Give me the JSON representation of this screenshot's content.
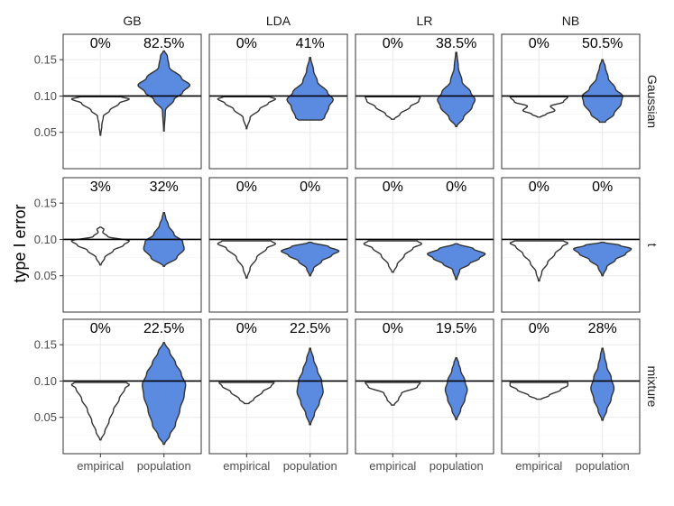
{
  "chart_data": {
    "type": "violin",
    "ylabel": "type I error",
    "x_categories": [
      "empirical",
      "population"
    ],
    "y_ticks": [
      0.05,
      0.1,
      0.15
    ],
    "y_tick_labels": [
      "0.05",
      "0.10",
      "0.15"
    ],
    "ylim": [
      0.0,
      0.185
    ],
    "reference_line": 0.1,
    "column_facets": [
      "GB",
      "LDA",
      "LR",
      "NB"
    ],
    "row_facets": [
      "Gaussian",
      "t",
      "mixture"
    ],
    "colors": {
      "empirical": "#ffffff",
      "population": "#5b8be0",
      "outline": "#333333"
    },
    "panels": [
      {
        "row": "Gaussian",
        "col": "GB",
        "empirical": {
          "percent": "0%",
          "min": 0.046,
          "max": 0.099,
          "profile": [
            [
              0.046,
              0.01
            ],
            [
              0.06,
              0.05
            ],
            [
              0.072,
              0.1
            ],
            [
              0.08,
              0.32
            ],
            [
              0.09,
              0.65
            ],
            [
              0.096,
              1.0
            ],
            [
              0.099,
              0.7
            ]
          ]
        },
        "population": {
          "percent": "82.5%",
          "min": 0.052,
          "max": 0.162,
          "profile": [
            [
              0.052,
              0.01
            ],
            [
              0.08,
              0.05
            ],
            [
              0.095,
              0.35
            ],
            [
              0.105,
              0.65
            ],
            [
              0.115,
              0.9
            ],
            [
              0.125,
              0.6
            ],
            [
              0.14,
              0.18
            ],
            [
              0.155,
              0.12
            ],
            [
              0.162,
              0.02
            ]
          ]
        }
      },
      {
        "row": "Gaussian",
        "col": "LDA",
        "empirical": {
          "percent": "0%",
          "min": 0.055,
          "max": 0.099,
          "profile": [
            [
              0.055,
              0.01
            ],
            [
              0.07,
              0.12
            ],
            [
              0.082,
              0.45
            ],
            [
              0.09,
              0.75
            ],
            [
              0.096,
              1.0
            ],
            [
              0.099,
              0.8
            ]
          ]
        },
        "population": {
          "percent": "41%",
          "min": 0.067,
          "max": 0.153,
          "profile": [
            [
              0.067,
              0.4
            ],
            [
              0.07,
              0.5
            ],
            [
              0.085,
              0.65
            ],
            [
              0.095,
              0.8
            ],
            [
              0.105,
              0.6
            ],
            [
              0.12,
              0.25
            ],
            [
              0.135,
              0.12
            ],
            [
              0.153,
              0.02
            ]
          ]
        }
      },
      {
        "row": "Gaussian",
        "col": "LR",
        "empirical": {
          "percent": "0%",
          "min": 0.068,
          "max": 0.099,
          "profile": [
            [
              0.068,
              0.05
            ],
            [
              0.075,
              0.25
            ],
            [
              0.085,
              0.6
            ],
            [
              0.093,
              0.9
            ],
            [
              0.099,
              0.95
            ]
          ]
        },
        "population": {
          "percent": "38.5%",
          "min": 0.058,
          "max": 0.16,
          "profile": [
            [
              0.058,
              0.02
            ],
            [
              0.07,
              0.25
            ],
            [
              0.085,
              0.55
            ],
            [
              0.095,
              0.65
            ],
            [
              0.105,
              0.5
            ],
            [
              0.12,
              0.2
            ],
            [
              0.14,
              0.07
            ],
            [
              0.16,
              0.02
            ]
          ]
        }
      },
      {
        "row": "Gaussian",
        "col": "NB",
        "empirical": {
          "percent": "0%",
          "min": 0.071,
          "max": 0.099,
          "profile": [
            [
              0.071,
              0.05
            ],
            [
              0.075,
              0.25
            ],
            [
              0.08,
              0.55
            ],
            [
              0.086,
              0.4
            ],
            [
              0.092,
              0.85
            ],
            [
              0.099,
              1.0
            ]
          ]
        },
        "population": {
          "percent": "50.5%",
          "min": 0.064,
          "max": 0.15,
          "profile": [
            [
              0.064,
              0.1
            ],
            [
              0.075,
              0.4
            ],
            [
              0.09,
              0.65
            ],
            [
              0.1,
              0.7
            ],
            [
              0.11,
              0.45
            ],
            [
              0.125,
              0.2
            ],
            [
              0.14,
              0.1
            ],
            [
              0.15,
              0.02
            ]
          ]
        }
      },
      {
        "row": "t",
        "col": "GB",
        "empirical": {
          "percent": "3%",
          "min": 0.065,
          "max": 0.117,
          "profile": [
            [
              0.065,
              0.02
            ],
            [
              0.075,
              0.15
            ],
            [
              0.085,
              0.45
            ],
            [
              0.092,
              0.8
            ],
            [
              0.098,
              1.0
            ],
            [
              0.104,
              0.25
            ],
            [
              0.11,
              0.08
            ],
            [
              0.114,
              0.12
            ],
            [
              0.117,
              0.02
            ]
          ]
        },
        "population": {
          "percent": "32%",
          "min": 0.063,
          "max": 0.137,
          "profile": [
            [
              0.063,
              0.02
            ],
            [
              0.075,
              0.45
            ],
            [
              0.087,
              0.7
            ],
            [
              0.097,
              0.65
            ],
            [
              0.107,
              0.35
            ],
            [
              0.12,
              0.15
            ],
            [
              0.13,
              0.06
            ],
            [
              0.137,
              0.02
            ]
          ]
        }
      },
      {
        "row": "t",
        "col": "LDA",
        "empirical": {
          "percent": "0%",
          "min": 0.047,
          "max": 0.098,
          "profile": [
            [
              0.047,
              0.02
            ],
            [
              0.06,
              0.12
            ],
            [
              0.075,
              0.35
            ],
            [
              0.088,
              0.7
            ],
            [
              0.094,
              1.0
            ],
            [
              0.098,
              0.85
            ]
          ]
        },
        "population": {
          "percent": "0%",
          "min": 0.05,
          "max": 0.096,
          "profile": [
            [
              0.05,
              0.02
            ],
            [
              0.06,
              0.12
            ],
            [
              0.07,
              0.4
            ],
            [
              0.078,
              0.75
            ],
            [
              0.084,
              1.0
            ],
            [
              0.09,
              0.65
            ],
            [
              0.096,
              0.05
            ]
          ]
        }
      },
      {
        "row": "t",
        "col": "LR",
        "empirical": {
          "percent": "0%",
          "min": 0.055,
          "max": 0.098,
          "profile": [
            [
              0.055,
              0.03
            ],
            [
              0.065,
              0.15
            ],
            [
              0.078,
              0.4
            ],
            [
              0.088,
              0.7
            ],
            [
              0.094,
              1.0
            ],
            [
              0.098,
              0.85
            ]
          ]
        },
        "population": {
          "percent": "0%",
          "min": 0.045,
          "max": 0.094,
          "profile": [
            [
              0.045,
              0.02
            ],
            [
              0.058,
              0.12
            ],
            [
              0.066,
              0.45
            ],
            [
              0.074,
              0.8
            ],
            [
              0.08,
              1.0
            ],
            [
              0.087,
              0.6
            ],
            [
              0.094,
              0.05
            ]
          ]
        }
      },
      {
        "row": "t",
        "col": "NB",
        "empirical": {
          "percent": "0%",
          "min": 0.043,
          "max": 0.098,
          "profile": [
            [
              0.043,
              0.02
            ],
            [
              0.055,
              0.1
            ],
            [
              0.068,
              0.3
            ],
            [
              0.08,
              0.55
            ],
            [
              0.09,
              0.8
            ],
            [
              0.095,
              1.0
            ],
            [
              0.098,
              0.85
            ]
          ]
        },
        "population": {
          "percent": "0%",
          "min": 0.05,
          "max": 0.096,
          "profile": [
            [
              0.05,
              0.02
            ],
            [
              0.062,
              0.15
            ],
            [
              0.072,
              0.45
            ],
            [
              0.08,
              0.8
            ],
            [
              0.087,
              1.0
            ],
            [
              0.092,
              0.6
            ],
            [
              0.096,
              0.05
            ]
          ]
        }
      },
      {
        "row": "mixture",
        "col": "GB",
        "empirical": {
          "percent": "0%",
          "min": 0.019,
          "max": 0.098,
          "profile": [
            [
              0.019,
              0.02
            ],
            [
              0.03,
              0.15
            ],
            [
              0.045,
              0.3
            ],
            [
              0.06,
              0.45
            ],
            [
              0.075,
              0.65
            ],
            [
              0.09,
              0.85
            ],
            [
              0.095,
              1.0
            ],
            [
              0.098,
              0.9
            ]
          ]
        },
        "population": {
          "percent": "22.5%",
          "min": 0.013,
          "max": 0.153,
          "profile": [
            [
              0.013,
              0.02
            ],
            [
              0.025,
              0.2
            ],
            [
              0.04,
              0.4
            ],
            [
              0.06,
              0.55
            ],
            [
              0.08,
              0.7
            ],
            [
              0.095,
              0.75
            ],
            [
              0.11,
              0.6
            ],
            [
              0.125,
              0.4
            ],
            [
              0.14,
              0.2
            ],
            [
              0.153,
              0.02
            ]
          ]
        }
      },
      {
        "row": "mixture",
        "col": "LDA",
        "empirical": {
          "percent": "0%",
          "min": 0.069,
          "max": 0.098,
          "profile": [
            [
              0.069,
              0.08
            ],
            [
              0.075,
              0.25
            ],
            [
              0.085,
              0.55
            ],
            [
              0.093,
              0.85
            ],
            [
              0.098,
              0.95
            ]
          ]
        },
        "population": {
          "percent": "22.5%",
          "min": 0.04,
          "max": 0.145,
          "profile": [
            [
              0.04,
              0.02
            ],
            [
              0.055,
              0.15
            ],
            [
              0.07,
              0.32
            ],
            [
              0.085,
              0.45
            ],
            [
              0.1,
              0.4
            ],
            [
              0.115,
              0.25
            ],
            [
              0.13,
              0.12
            ],
            [
              0.145,
              0.02
            ]
          ]
        }
      },
      {
        "row": "mixture",
        "col": "LR",
        "empirical": {
          "percent": "0%",
          "min": 0.067,
          "max": 0.098,
          "profile": [
            [
              0.067,
              0.05
            ],
            [
              0.075,
              0.2
            ],
            [
              0.083,
              0.3
            ],
            [
              0.092,
              0.85
            ],
            [
              0.098,
              0.95
            ]
          ]
        },
        "population": {
          "percent": "19.5%",
          "min": 0.047,
          "max": 0.132,
          "profile": [
            [
              0.047,
              0.02
            ],
            [
              0.06,
              0.15
            ],
            [
              0.075,
              0.3
            ],
            [
              0.088,
              0.38
            ],
            [
              0.1,
              0.3
            ],
            [
              0.115,
              0.15
            ],
            [
              0.125,
              0.08
            ],
            [
              0.132,
              0.02
            ]
          ]
        }
      },
      {
        "row": "mixture",
        "col": "NB",
        "empirical": {
          "percent": "0%",
          "min": 0.075,
          "max": 0.098,
          "profile": [
            [
              0.075,
              0.08
            ],
            [
              0.08,
              0.35
            ],
            [
              0.088,
              0.75
            ],
            [
              0.094,
              1.0
            ],
            [
              0.098,
              1.0
            ]
          ]
        },
        "population": {
          "percent": "28%",
          "min": 0.046,
          "max": 0.145,
          "profile": [
            [
              0.046,
              0.02
            ],
            [
              0.06,
              0.15
            ],
            [
              0.075,
              0.3
            ],
            [
              0.09,
              0.4
            ],
            [
              0.105,
              0.3
            ],
            [
              0.12,
              0.15
            ],
            [
              0.135,
              0.07
            ],
            [
              0.145,
              0.02
            ]
          ]
        }
      }
    ]
  }
}
